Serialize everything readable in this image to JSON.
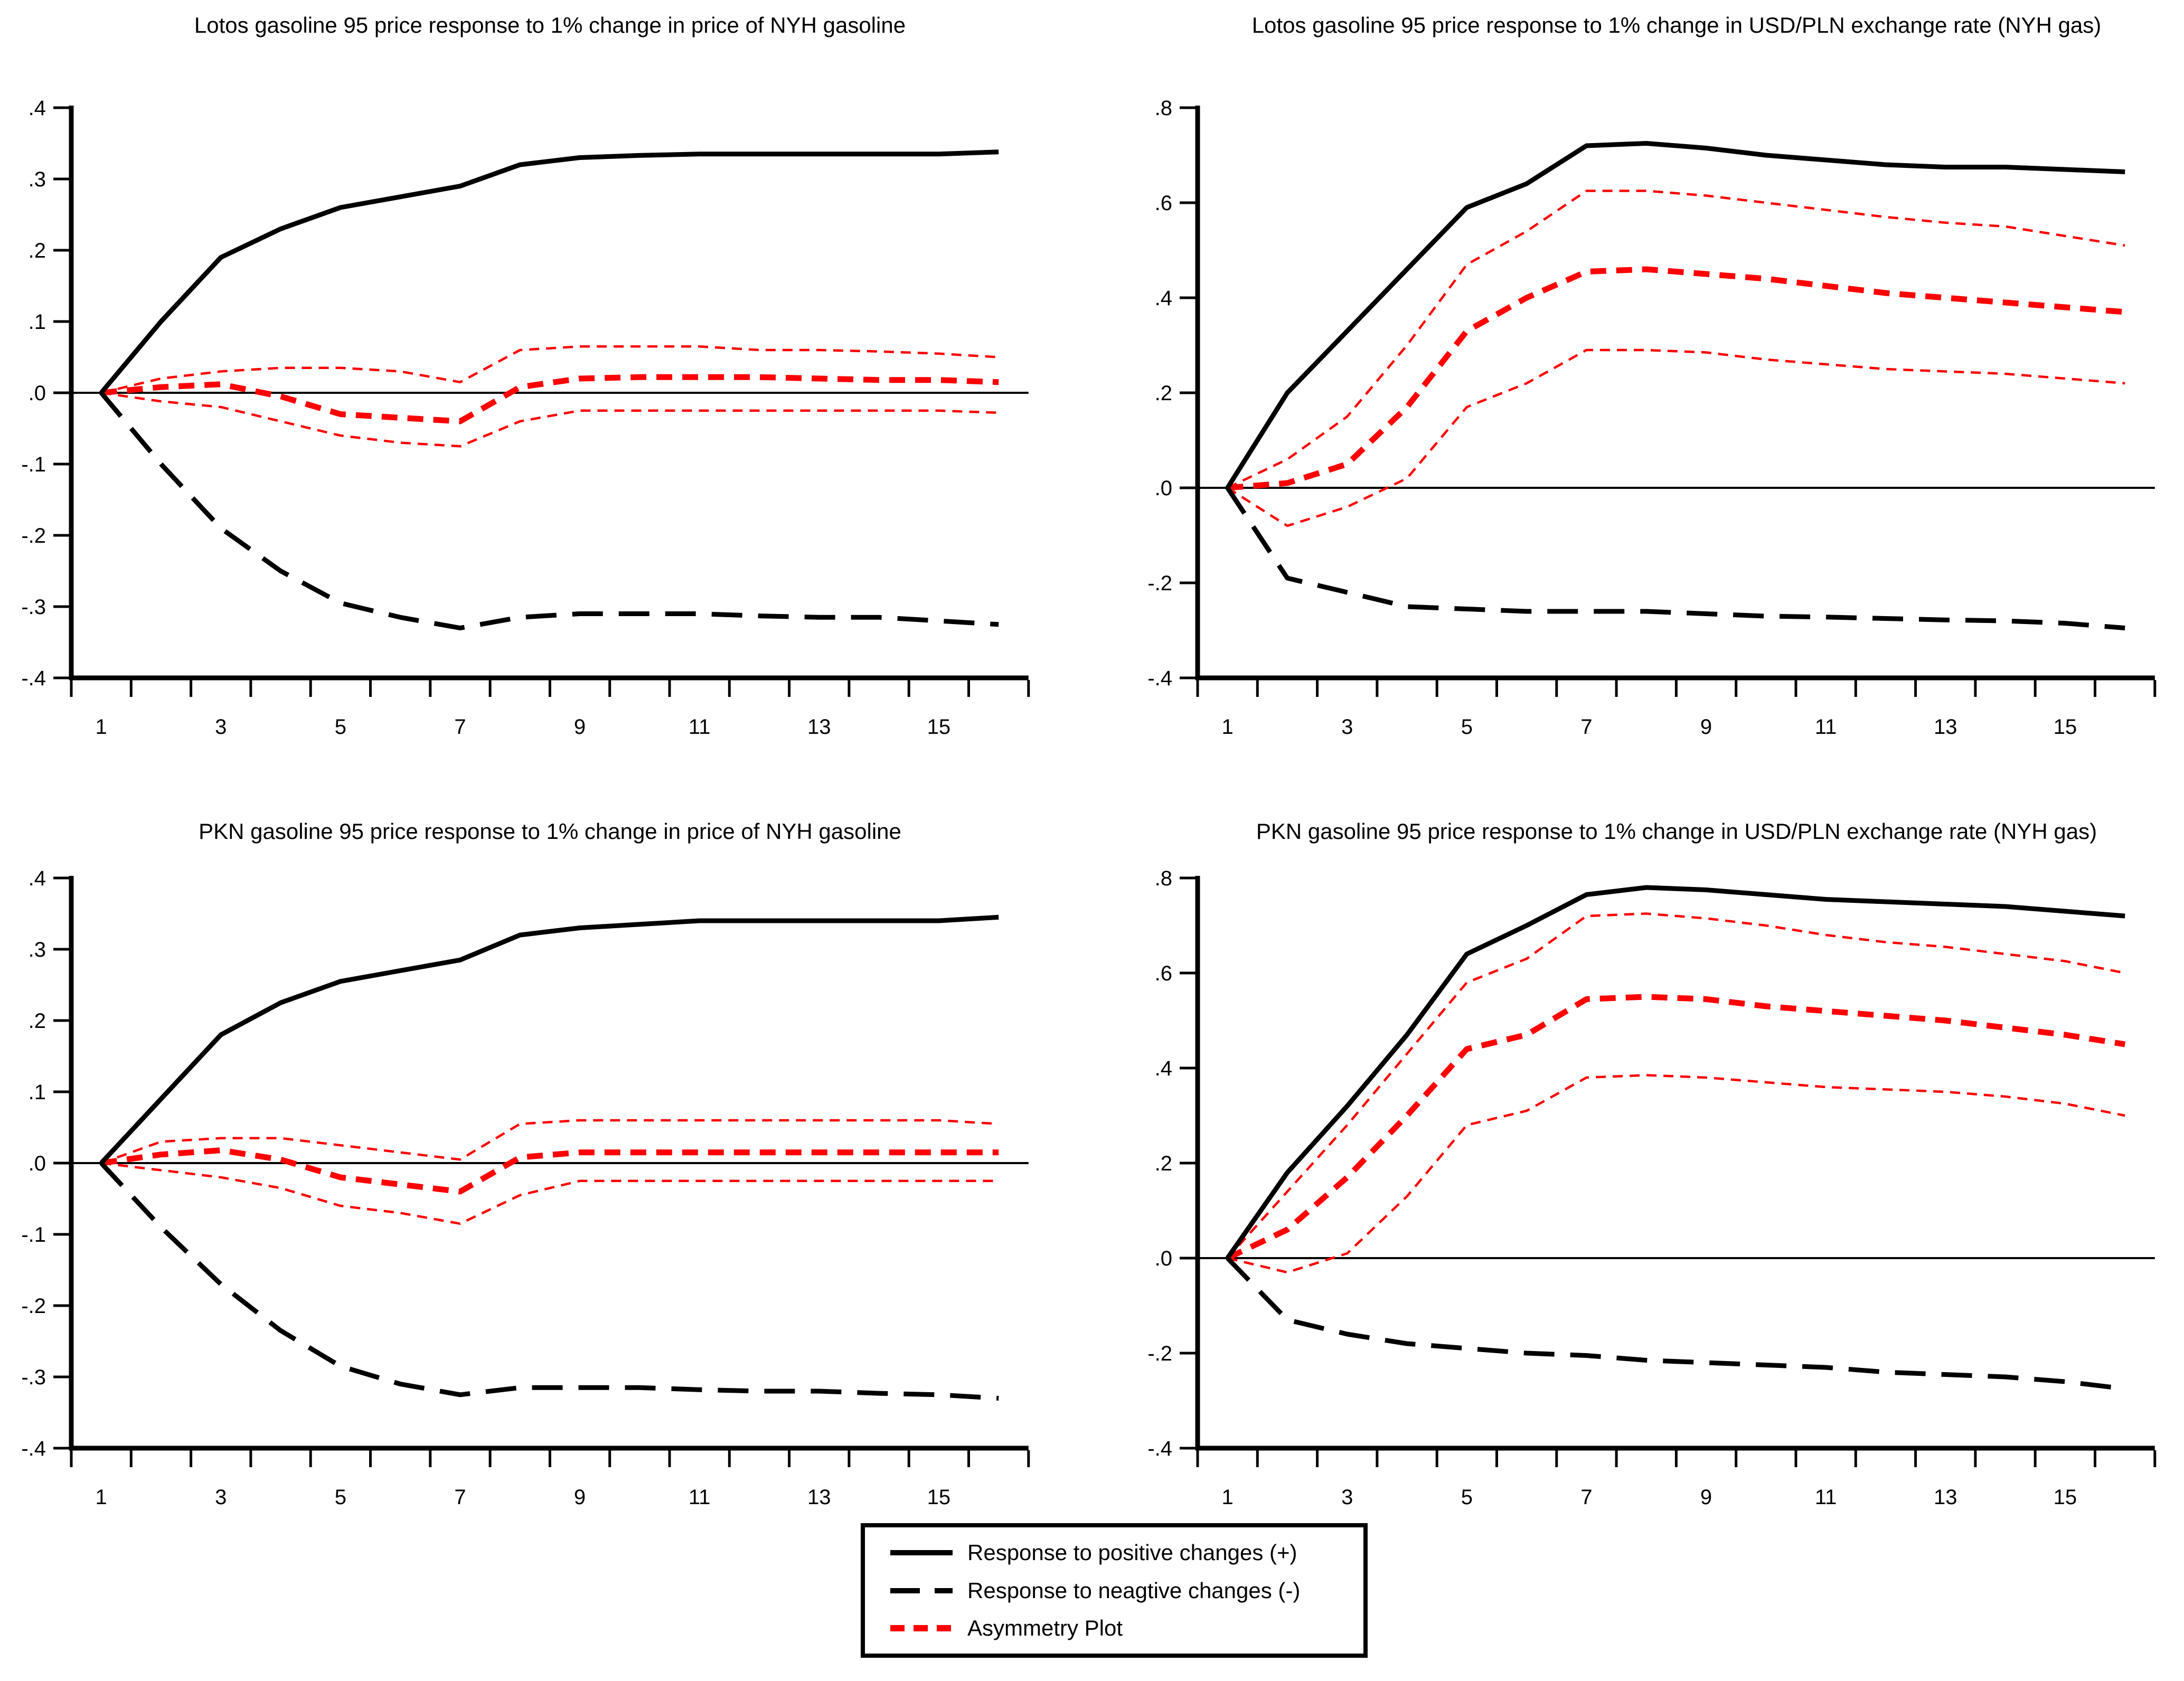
{
  "page": {
    "background": "#ffffff"
  },
  "colors": {
    "positive_line": "#000000",
    "negative_line": "#000000",
    "asymmetry_line": "#ff0000",
    "confidence_band": "#ff0000",
    "axis": "#000000",
    "text": "#000000"
  },
  "legend": {
    "position": "bottom-center",
    "items": [
      {
        "label": "Response to positive changes (+)",
        "swatch": "solid-black"
      },
      {
        "label": "Response to neagtive changes (-)",
        "swatch": "dashed-black"
      },
      {
        "label": "Asymmetry Plot",
        "swatch": "dashed-red"
      }
    ]
  },
  "chart_data": [
    {
      "type": "line",
      "title": "Lotos gasoline 95 price response to 1% change in price of NYH gasoline",
      "x": [
        1,
        2,
        3,
        4,
        5,
        6,
        7,
        8,
        9,
        10,
        11,
        12,
        13,
        14,
        15,
        16
      ],
      "xtick_labels": [
        "1",
        "3",
        "5",
        "7",
        "9",
        "11",
        "13",
        "15"
      ],
      "ylim": [
        -0.4,
        0.4
      ],
      "ytick_values": [
        0.4,
        0.3,
        0.2,
        0.1,
        0.0,
        -0.1,
        -0.2,
        -0.3,
        -0.4
      ],
      "ytick_labels": [
        ".4",
        ".3",
        ".2",
        ".1",
        ".0",
        "-.1",
        "-.2",
        "-.3",
        "-.4"
      ],
      "grid": false,
      "zero_line": true,
      "series": [
        {
          "name": "Response to positive changes (+)",
          "role": "positive",
          "values": [
            0,
            0.1,
            0.19,
            0.23,
            0.26,
            0.275,
            0.29,
            0.32,
            0.33,
            0.333,
            0.335,
            0.335,
            0.335,
            0.335,
            0.335,
            0.338
          ]
        },
        {
          "name": "Response to neagtive changes (-)",
          "role": "negative",
          "values": [
            0,
            -0.1,
            -0.19,
            -0.25,
            -0.295,
            -0.315,
            -0.33,
            -0.315,
            -0.31,
            -0.31,
            -0.31,
            -0.313,
            -0.315,
            -0.315,
            -0.32,
            -0.325
          ]
        },
        {
          "name": "Asymmetry Plot",
          "role": "asymmetry",
          "values": [
            0,
            0.008,
            0.012,
            -0.005,
            -0.03,
            -0.035,
            -0.04,
            0.008,
            0.02,
            0.022,
            0.022,
            0.022,
            0.02,
            0.018,
            0.018,
            0.015
          ]
        },
        {
          "name": "asymmetry-band-upper",
          "role": "band_upper",
          "values": [
            0,
            0.02,
            0.03,
            0.035,
            0.035,
            0.03,
            0.015,
            0.06,
            0.065,
            0.065,
            0.065,
            0.06,
            0.06,
            0.058,
            0.055,
            0.05
          ]
        },
        {
          "name": "asymmetry-band-lower",
          "role": "band_lower",
          "values": [
            0,
            -0.012,
            -0.02,
            -0.04,
            -0.06,
            -0.07,
            -0.075,
            -0.04,
            -0.025,
            -0.025,
            -0.025,
            -0.025,
            -0.025,
            -0.025,
            -0.025,
            -0.028
          ]
        }
      ]
    },
    {
      "type": "line",
      "title": "Lotos gasoline 95 price response to 1% change in USD/PLN exchange rate (NYH gas)",
      "x": [
        1,
        2,
        3,
        4,
        5,
        6,
        7,
        8,
        9,
        10,
        11,
        12,
        13,
        14,
        15,
        16
      ],
      "xtick_labels": [
        "1",
        "3",
        "5",
        "7",
        "9",
        "11",
        "13",
        "15"
      ],
      "ylim": [
        -0.4,
        0.8
      ],
      "ytick_values": [
        0.8,
        0.6,
        0.4,
        0.2,
        0.0,
        -0.2,
        -0.4
      ],
      "ytick_labels": [
        ".8",
        ".6",
        ".4",
        ".2",
        ".0",
        "-.2",
        "-.4"
      ],
      "grid": false,
      "zero_line": true,
      "series": [
        {
          "name": "Response to positive changes (+)",
          "role": "positive",
          "values": [
            0,
            0.2,
            0.33,
            0.46,
            0.59,
            0.64,
            0.72,
            0.725,
            0.715,
            0.7,
            0.69,
            0.68,
            0.675,
            0.675,
            0.67,
            0.665
          ]
        },
        {
          "name": "Response to neagtive changes (-)",
          "role": "negative",
          "values": [
            0,
            -0.19,
            -0.22,
            -0.25,
            -0.255,
            -0.26,
            -0.26,
            -0.26,
            -0.265,
            -0.27,
            -0.272,
            -0.275,
            -0.278,
            -0.28,
            -0.285,
            -0.295
          ]
        },
        {
          "name": "Asymmetry Plot",
          "role": "asymmetry",
          "values": [
            0,
            0.01,
            0.05,
            0.17,
            0.33,
            0.4,
            0.455,
            0.46,
            0.45,
            0.44,
            0.425,
            0.41,
            0.4,
            0.39,
            0.38,
            0.37
          ]
        },
        {
          "name": "asymmetry-band-upper",
          "role": "band_upper",
          "values": [
            0,
            0.06,
            0.15,
            0.3,
            0.47,
            0.54,
            0.625,
            0.625,
            0.615,
            0.6,
            0.585,
            0.57,
            0.558,
            0.55,
            0.53,
            0.51
          ]
        },
        {
          "name": "asymmetry-band-lower",
          "role": "band_lower",
          "values": [
            0,
            -0.08,
            -0.04,
            0.02,
            0.17,
            0.22,
            0.29,
            0.29,
            0.285,
            0.27,
            0.26,
            0.25,
            0.245,
            0.24,
            0.23,
            0.22
          ]
        }
      ]
    },
    {
      "type": "line",
      "title": "PKN gasoline 95 price response to 1% change in price of NYH gasoline",
      "x": [
        1,
        2,
        3,
        4,
        5,
        6,
        7,
        8,
        9,
        10,
        11,
        12,
        13,
        14,
        15,
        16
      ],
      "xtick_labels": [
        "1",
        "3",
        "5",
        "7",
        "9",
        "11",
        "13",
        "15"
      ],
      "ylim": [
        -0.4,
        0.4
      ],
      "ytick_values": [
        0.4,
        0.3,
        0.2,
        0.1,
        0.0,
        -0.1,
        -0.2,
        -0.3,
        -0.4
      ],
      "ytick_labels": [
        ".4",
        ".3",
        ".2",
        ".1",
        ".0",
        "-.1",
        "-.2",
        "-.3",
        "-.4"
      ],
      "grid": false,
      "zero_line": true,
      "series": [
        {
          "name": "Response to positive changes (+)",
          "role": "positive",
          "values": [
            0,
            0.09,
            0.18,
            0.225,
            0.255,
            0.27,
            0.285,
            0.32,
            0.33,
            0.335,
            0.34,
            0.34,
            0.34,
            0.34,
            0.34,
            0.345
          ]
        },
        {
          "name": "Response to neagtive changes (-)",
          "role": "negative",
          "values": [
            0,
            -0.09,
            -0.17,
            -0.235,
            -0.285,
            -0.31,
            -0.325,
            -0.315,
            -0.315,
            -0.315,
            -0.318,
            -0.32,
            -0.32,
            -0.323,
            -0.325,
            -0.33
          ]
        },
        {
          "name": "Asymmetry Plot",
          "role": "asymmetry",
          "values": [
            0,
            0.012,
            0.018,
            0.005,
            -0.02,
            -0.03,
            -0.04,
            0.008,
            0.015,
            0.015,
            0.015,
            0.015,
            0.015,
            0.015,
            0.015,
            0.015
          ]
        },
        {
          "name": "asymmetry-band-upper",
          "role": "band_upper",
          "values": [
            0,
            0.03,
            0.035,
            0.035,
            0.025,
            0.015,
            0.005,
            0.055,
            0.06,
            0.06,
            0.06,
            0.06,
            0.06,
            0.06,
            0.06,
            0.055
          ]
        },
        {
          "name": "asymmetry-band-lower",
          "role": "band_lower",
          "values": [
            0,
            -0.01,
            -0.02,
            -0.035,
            -0.06,
            -0.07,
            -0.085,
            -0.045,
            -0.025,
            -0.025,
            -0.025,
            -0.025,
            -0.025,
            -0.025,
            -0.025,
            -0.025
          ]
        }
      ]
    },
    {
      "type": "line",
      "title": "PKN gasoline 95 price response to 1% change in USD/PLN exchange rate (NYH gas)",
      "x": [
        1,
        2,
        3,
        4,
        5,
        6,
        7,
        8,
        9,
        10,
        11,
        12,
        13,
        14,
        15,
        16
      ],
      "xtick_labels": [
        "1",
        "3",
        "5",
        "7",
        "9",
        "11",
        "13",
        "15"
      ],
      "ylim": [
        -0.4,
        0.8
      ],
      "ytick_values": [
        0.8,
        0.6,
        0.4,
        0.2,
        0.0,
        -0.2,
        -0.4
      ],
      "ytick_labels": [
        ".8",
        ".6",
        ".4",
        ".2",
        ".0",
        "-.2",
        "-.4"
      ],
      "grid": false,
      "zero_line": true,
      "series": [
        {
          "name": "Response to positive changes (+)",
          "role": "positive",
          "values": [
            0,
            0.18,
            0.32,
            0.47,
            0.64,
            0.7,
            0.765,
            0.78,
            0.775,
            0.765,
            0.755,
            0.75,
            0.745,
            0.74,
            0.73,
            0.72
          ]
        },
        {
          "name": "Response to neagtive changes (-)",
          "role": "negative",
          "values": [
            0,
            -0.13,
            -0.16,
            -0.18,
            -0.19,
            -0.2,
            -0.205,
            -0.215,
            -0.22,
            -0.225,
            -0.23,
            -0.24,
            -0.245,
            -0.25,
            -0.26,
            -0.275
          ]
        },
        {
          "name": "Asymmetry Plot",
          "role": "asymmetry",
          "values": [
            0,
            0.06,
            0.17,
            0.3,
            0.44,
            0.47,
            0.545,
            0.55,
            0.545,
            0.53,
            0.52,
            0.51,
            0.5,
            0.485,
            0.47,
            0.45
          ]
        },
        {
          "name": "asymmetry-band-upper",
          "role": "band_upper",
          "values": [
            0,
            0.14,
            0.28,
            0.43,
            0.58,
            0.63,
            0.72,
            0.725,
            0.715,
            0.7,
            0.68,
            0.665,
            0.655,
            0.64,
            0.625,
            0.6
          ]
        },
        {
          "name": "asymmetry-band-lower",
          "role": "band_lower",
          "values": [
            0,
            -0.03,
            0.01,
            0.13,
            0.28,
            0.31,
            0.38,
            0.385,
            0.38,
            0.37,
            0.36,
            0.355,
            0.35,
            0.34,
            0.325,
            0.3
          ]
        }
      ]
    }
  ]
}
